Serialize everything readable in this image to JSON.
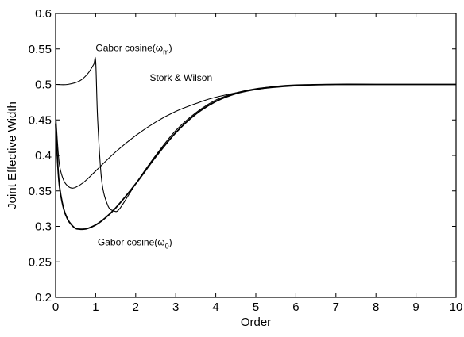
{
  "chart_data": {
    "type": "line",
    "title": "",
    "xlabel": "Order",
    "ylabel": "Joint Effective Width",
    "xlim": [
      0,
      10
    ],
    "ylim": [
      0.2,
      0.6
    ],
    "xticks": [
      0,
      1,
      2,
      3,
      4,
      5,
      6,
      7,
      8,
      9,
      10
    ],
    "yticks": [
      0.2,
      0.25,
      0.3,
      0.35,
      0.4,
      0.45,
      0.5,
      0.55,
      0.6
    ],
    "grid": false,
    "series": [
      {
        "name": "Gabor cosine(ωm)",
        "x": [
          0,
          0.3,
          0.6,
          0.8,
          0.95,
          1.0,
          1.05,
          1.15,
          1.3,
          1.45,
          1.6,
          2.0,
          2.5,
          3.0,
          3.5,
          4.0,
          4.5,
          5.0,
          5.5,
          6.0,
          7.0,
          8.0,
          10.0
        ],
        "y": [
          0.5,
          0.5,
          0.505,
          0.515,
          0.528,
          0.533,
          0.45,
          0.365,
          0.33,
          0.322,
          0.325,
          0.36,
          0.4,
          0.435,
          0.46,
          0.478,
          0.488,
          0.494,
          0.497,
          0.499,
          0.5,
          0.5,
          0.5
        ]
      },
      {
        "name": "Stork & Wilson",
        "x": [
          0,
          0.05,
          0.1,
          0.2,
          0.3,
          0.4,
          0.5,
          0.7,
          1.0,
          1.5,
          2.0,
          2.5,
          3.0,
          3.5,
          4.0,
          5.0,
          6.0,
          7.0,
          8.0,
          10.0
        ],
        "y": [
          0.46,
          0.415,
          0.385,
          0.365,
          0.357,
          0.354,
          0.355,
          0.362,
          0.378,
          0.405,
          0.428,
          0.447,
          0.462,
          0.473,
          0.482,
          0.493,
          0.498,
          0.5,
          0.5,
          0.5
        ]
      },
      {
        "name": "Gabor cosine(ω0)",
        "x": [
          0,
          0.05,
          0.1,
          0.2,
          0.3,
          0.4,
          0.5,
          0.6,
          0.7,
          0.8,
          1.0,
          1.2,
          1.5,
          2.0,
          2.5,
          3.0,
          3.5,
          4.0,
          4.5,
          5.0,
          5.5,
          6.0,
          7.0,
          8.0,
          10.0
        ],
        "y": [
          0.445,
          0.39,
          0.355,
          0.325,
          0.31,
          0.302,
          0.297,
          0.296,
          0.296,
          0.297,
          0.302,
          0.31,
          0.326,
          0.36,
          0.398,
          0.432,
          0.458,
          0.476,
          0.487,
          0.493,
          0.497,
          0.499,
          0.5,
          0.5,
          0.5
        ]
      }
    ],
    "annotations": [
      {
        "id": "gabor_m",
        "text": "Gabor cosine(ωm)",
        "x": 1.0,
        "y": 0.547
      },
      {
        "id": "stork",
        "text": "Stork & Wilson",
        "x": 2.35,
        "y": 0.505
      },
      {
        "id": "gabor_0",
        "text": "Gabor cosine(ω0)",
        "x": 1.05,
        "y": 0.273
      }
    ]
  }
}
